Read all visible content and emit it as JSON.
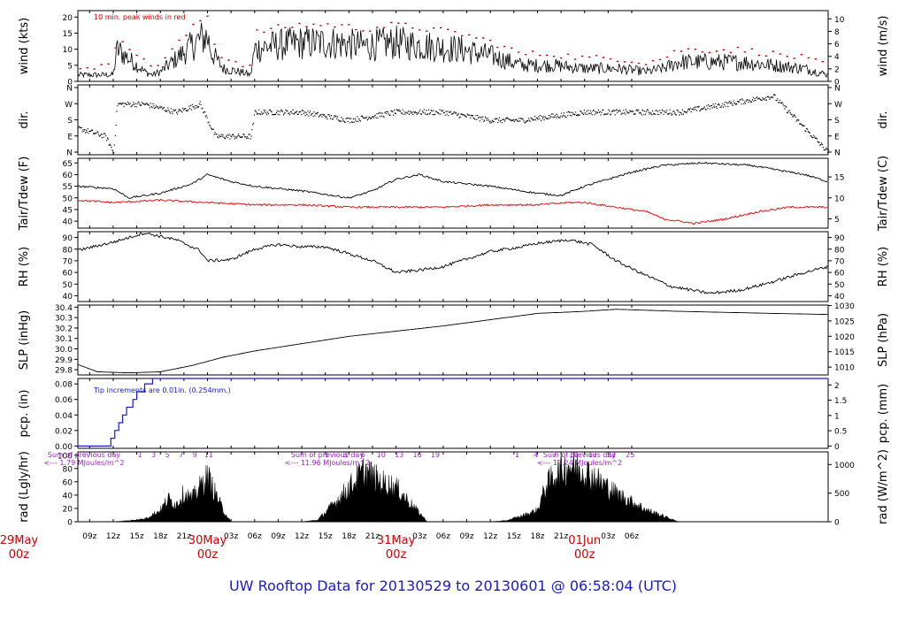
{
  "title": "UW Rooftop Data for 20130529  to  20130601 @ 06:58:04  (UTC)",
  "colors": {
    "title": "#1a1acc",
    "day_label": "#cc0000",
    "peak": "#cc0000",
    "dewpoint": "#dd0000",
    "precip": "#1a1acc",
    "note": "#1a1acc",
    "solar_note": "#9922bb",
    "line": "#000000"
  },
  "time_axis": {
    "x_range_hours": [
      -16.5,
      79
    ],
    "tick_labels": [
      "09z",
      "12z",
      "15z",
      "18z",
      "21z",
      "00z",
      "03z",
      "06z",
      "09z",
      "12z",
      "15z",
      "18z",
      "21z",
      "00z",
      "03z",
      "06z",
      "09z",
      "12z",
      "15z",
      "18z",
      "21z",
      "00z",
      "03z",
      "06z"
    ],
    "tick_hours": [
      -15,
      -12,
      -9,
      -6,
      -3,
      0,
      3,
      6,
      9,
      12,
      15,
      18,
      21,
      24,
      27,
      30,
      33,
      36,
      39,
      42,
      45,
      48,
      51,
      54
    ],
    "day_labels": [
      {
        "hour": -24,
        "line1": "29May",
        "line2": "00z"
      },
      {
        "hour": 0,
        "line1": "30May",
        "line2": "00z"
      },
      {
        "hour": 24,
        "line1": "31May",
        "line2": "00z"
      },
      {
        "hour": 48,
        "line1": "01Jun",
        "line2": "00z"
      }
    ]
  },
  "panels": {
    "wind": {
      "ylabel_left": "wind (kts)",
      "ylabel_right": "wind (m/s)",
      "left_ticks": [
        "0",
        "5",
        "10",
        "15",
        "20"
      ],
      "left_range": [
        0,
        22
      ],
      "right_ticks": [
        "0",
        "2",
        "4",
        "6",
        "8",
        "10"
      ],
      "note": "10 min. peak winds in red"
    },
    "dir": {
      "ylabel_left": "dir.",
      "ylabel_right": "dir.",
      "ticks": [
        "N",
        "E",
        "S",
        "W",
        "N"
      ]
    },
    "temp": {
      "ylabel_left": "Tair/Tdew (F)",
      "ylabel_right": "Tair/Tdew (C)",
      "left_ticks": [
        "40",
        "45",
        "50",
        "55",
        "60",
        "65"
      ],
      "left_range": [
        37,
        67
      ],
      "right_ticks": [
        "5",
        "10",
        "15"
      ]
    },
    "rh": {
      "ylabel_left": "RH (%)",
      "ylabel_right": "RH (%)",
      "ticks": [
        "40",
        "50",
        "60",
        "70",
        "80",
        "90"
      ],
      "range": [
        35,
        95
      ]
    },
    "slp": {
      "ylabel_left": "SLP (inHg)",
      "ylabel_right": "SLP (hPa)",
      "left_ticks": [
        "29.8",
        "29.9",
        "30.0",
        "30.1",
        "30.2",
        "30.3",
        "30.4"
      ],
      "left_range": [
        29.75,
        30.42
      ],
      "right_ticks": [
        "1010",
        "1015",
        "1020",
        "1025",
        "1030"
      ]
    },
    "pcp": {
      "ylabel_left": "pcp. (in)",
      "ylabel_right": "pcp. (mm)",
      "left_ticks": [
        "0.00",
        "0.02",
        "0.04",
        "0.06",
        "0.08"
      ],
      "left_range": [
        -0.003,
        0.087
      ],
      "right_ticks": [
        "0",
        "0.5",
        "1",
        "1.5",
        "2"
      ],
      "note": "Tip increments are 0.01in. (0.254mm.)"
    },
    "rad": {
      "ylabel_left": "rad (Lgly/hr)",
      "ylabel_right": "rad (W/m^2)",
      "left_ticks": [
        "0",
        "20",
        "40",
        "60",
        "80",
        "100"
      ],
      "left_range": [
        0,
        105
      ],
      "right_ticks": [
        "0",
        "500",
        "1000"
      ],
      "day_sums": [
        {
          "line1": "Sum of previous day",
          "line2": "<--- 1.79 MJoules/m^2"
        },
        {
          "line1": "Sum of previous day",
          "line2": "<--- 11.96 MJoules/m^2"
        },
        {
          "line1": "Sum of previous day",
          "line2": "<--- 19.24 MJoules/m^2"
        }
      ],
      "hour_labels_day1": [
        "1",
        "3",
        "5",
        "7",
        "9",
        "11"
      ],
      "hour_labels_day2": [
        "1",
        "3",
        "6",
        "10",
        "13",
        "16",
        "19"
      ],
      "hour_labels_day3": [
        "1",
        "4",
        "7",
        "10",
        "17",
        "22",
        "25"
      ]
    }
  },
  "chart_data": {
    "type": "line",
    "x_units": "hours relative to 30May 00z",
    "series": [
      {
        "id": "wind_speed",
        "unit": "kts",
        "x": [
          -16.5,
          -14,
          -12,
          -11.5,
          -10,
          -8,
          -7,
          -6,
          -4,
          -2,
          -1,
          0,
          0.5,
          2,
          4,
          5.5,
          6,
          8,
          12,
          16,
          20,
          24,
          28,
          32,
          36,
          40,
          44,
          48,
          52,
          56,
          58,
          60,
          64,
          68,
          72,
          76,
          79
        ],
        "y": [
          2,
          2,
          2,
          10,
          7,
          3,
          2,
          3,
          7,
          11,
          13,
          14,
          9,
          4,
          3,
          2,
          10,
          11,
          12,
          12,
          11,
          12,
          11,
          10,
          8,
          5,
          5,
          4,
          4,
          3,
          4,
          6,
          6,
          6,
          5,
          4,
          2
        ]
      },
      {
        "id": "wind_dir",
        "unit": "compass",
        "x": [
          -16.5,
          -13,
          -12,
          -11.5,
          -8,
          -4,
          -1,
          1,
          3,
          5.5,
          6,
          12,
          18,
          24,
          30,
          36,
          40,
          48,
          54,
          60,
          66,
          72,
          79
        ],
        "y": [
          "SE",
          "E",
          "N",
          "W",
          "W",
          "SW",
          "W",
          "E",
          "E",
          "E",
          "SW",
          "SW",
          "S",
          "SW",
          "SW",
          "S",
          "S",
          "SW",
          "SW",
          "SW",
          "W",
          "NW",
          "N"
        ]
      },
      {
        "id": "air_temp",
        "unit": "F",
        "x": [
          -16.5,
          -12,
          -10,
          -6,
          -2,
          0,
          3,
          6,
          12,
          18,
          21,
          24,
          27,
          30,
          36,
          42,
          45,
          48,
          54,
          58,
          63,
          69,
          76,
          79
        ],
        "y": [
          55,
          54,
          50,
          52,
          56,
          60,
          57,
          55,
          53,
          50,
          53,
          58,
          60,
          57,
          55,
          52,
          51,
          55,
          61,
          64,
          65,
          64,
          60,
          57
        ]
      },
      {
        "id": "dew_point",
        "unit": "F",
        "x": [
          -16.5,
          -12,
          -6,
          0,
          6,
          12,
          18,
          24,
          30,
          36,
          42,
          46,
          48,
          52,
          56,
          58,
          62,
          66,
          70,
          74,
          79
        ],
        "y": [
          49,
          48,
          49,
          48,
          47,
          47,
          46,
          46,
          46,
          47,
          47,
          48,
          48,
          46,
          44,
          41,
          39,
          41,
          44,
          46,
          46
        ]
      },
      {
        "id": "relative_humidity",
        "unit": "%",
        "x": [
          -16.5,
          -12,
          -8,
          -4,
          -1,
          0,
          3,
          6,
          9,
          12,
          15,
          18,
          21,
          24,
          27,
          30,
          36,
          40,
          42,
          46,
          49,
          52,
          55,
          59,
          64,
          68,
          72,
          76,
          79
        ],
        "y": [
          79,
          86,
          94,
          88,
          79,
          70,
          71,
          80,
          84,
          82,
          82,
          76,
          70,
          60,
          62,
          65,
          78,
          82,
          85,
          88,
          84,
          70,
          60,
          48,
          42,
          45,
          52,
          60,
          65
        ]
      },
      {
        "id": "sea_level_pressure",
        "unit": "inHg",
        "x": [
          -16.5,
          -14,
          -10,
          -6,
          -2,
          2,
          6,
          12,
          18,
          24,
          30,
          36,
          42,
          48,
          52,
          56,
          60,
          66,
          72,
          79
        ],
        "y": [
          29.85,
          29.78,
          29.77,
          29.78,
          29.84,
          29.92,
          29.98,
          30.05,
          30.12,
          30.17,
          30.22,
          30.28,
          30.34,
          30.36,
          30.38,
          30.37,
          30.36,
          30.35,
          30.34,
          30.33
        ]
      },
      {
        "id": "precipitation_cumulative",
        "unit": "in",
        "x": [
          -16.5,
          -12.5,
          -12.3,
          -11.8,
          -11.3,
          -10.8,
          -10.3,
          -9.5,
          -9,
          -8,
          -7,
          79
        ],
        "y": [
          0.0,
          0.0,
          0.01,
          0.02,
          0.03,
          0.04,
          0.05,
          0.06,
          0.07,
          0.08,
          0.09,
          0.09
        ]
      },
      {
        "id": "solar_radiation",
        "unit": "Lgly/hr",
        "x": [
          -16.5,
          -12,
          -10,
          -8,
          -6,
          -5,
          -4,
          -3,
          -2,
          -1,
          0,
          1,
          2,
          3,
          12,
          14,
          16,
          18,
          20,
          22,
          24,
          26,
          28,
          36,
          38,
          40,
          42,
          43,
          44,
          46,
          48,
          50,
          52,
          56,
          60,
          79
        ],
        "y": [
          0,
          0,
          2,
          5,
          20,
          40,
          30,
          50,
          40,
          60,
          80,
          50,
          20,
          0,
          0,
          3,
          30,
          60,
          90,
          70,
          60,
          30,
          0,
          0,
          2,
          10,
          20,
          60,
          80,
          100,
          90,
          70,
          50,
          20,
          0,
          0
        ]
      }
    ]
  }
}
